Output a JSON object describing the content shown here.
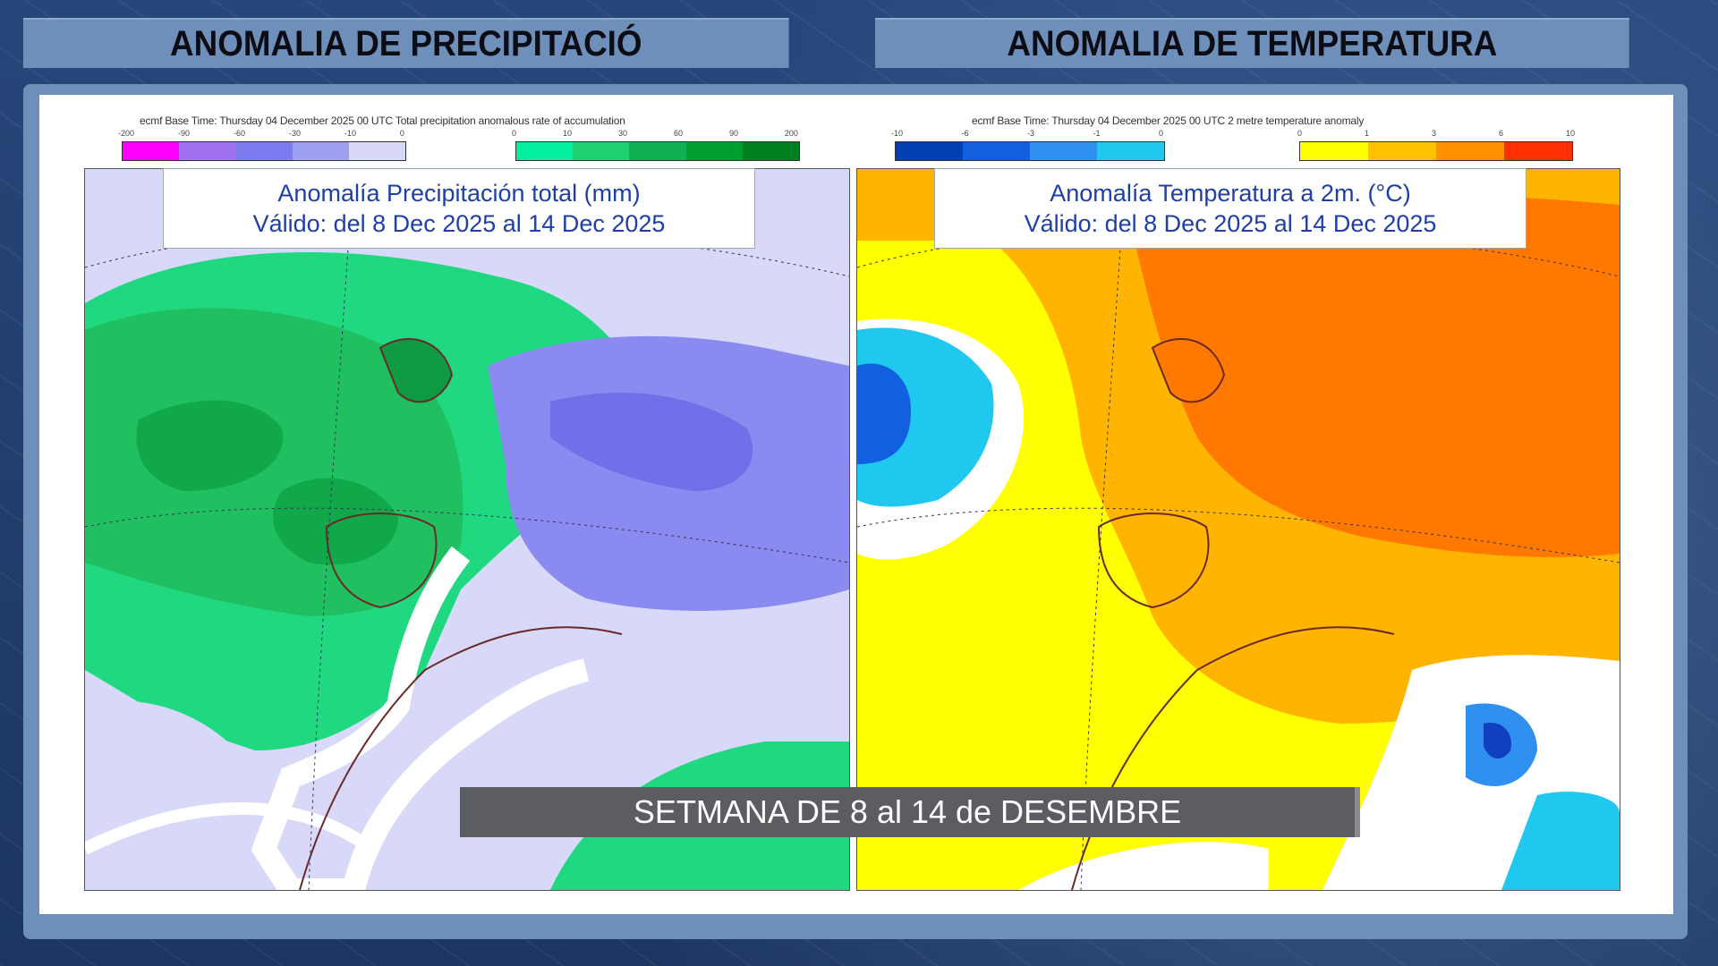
{
  "headers": {
    "left": "ANOMALIA DE PRECIPITACIÓ",
    "right": "ANOMALIA DE TEMPERATURA"
  },
  "precip_map": {
    "legend_title": "ecmf  Base Time: Thursday 04 December 2025 00 UTC  Total precipitation anomalous rate of accumulation",
    "negative_ticks": [
      "-200",
      "-90",
      "-60",
      "-30",
      "-10",
      "0"
    ],
    "positive_ticks": [
      "0",
      "10",
      "30",
      "60",
      "90",
      "200"
    ],
    "negative_colors": [
      "#ff00ff",
      "#a070f0",
      "#7c7cf0",
      "#a0a0f0",
      "#d8d8f8"
    ],
    "positive_colors": [
      "#00f0a0",
      "#20d070",
      "#10b050",
      "#00a030",
      "#008020"
    ],
    "title_line1": "Anomalía Precipitación total (mm)",
    "title_line2": "Válido: del 8 Dec 2025 al 14 Dec 2025"
  },
  "temp_map": {
    "legend_title": "ecmf  Base Time: Thursday 04 December 2025 00 UTC 2 metre temperature anomaly",
    "negative_ticks": [
      "-10",
      "-6",
      "-3",
      "-1",
      "0"
    ],
    "positive_ticks": [
      "0",
      "1",
      "3",
      "6",
      "10"
    ],
    "negative_colors": [
      "#0040b0",
      "#1060e0",
      "#3090f0",
      "#20c8f0"
    ],
    "positive_colors": [
      "#ffff00",
      "#ffc000",
      "#ff9000",
      "#ff3000"
    ],
    "title_line1": "Anomalía Temperatura a 2m. (°C)",
    "title_line2": "Válido: del 8 Dec 2025 al 14 Dec 2025"
  },
  "banner": "SETMANA DE 8 al 14 de DESEMBRE"
}
